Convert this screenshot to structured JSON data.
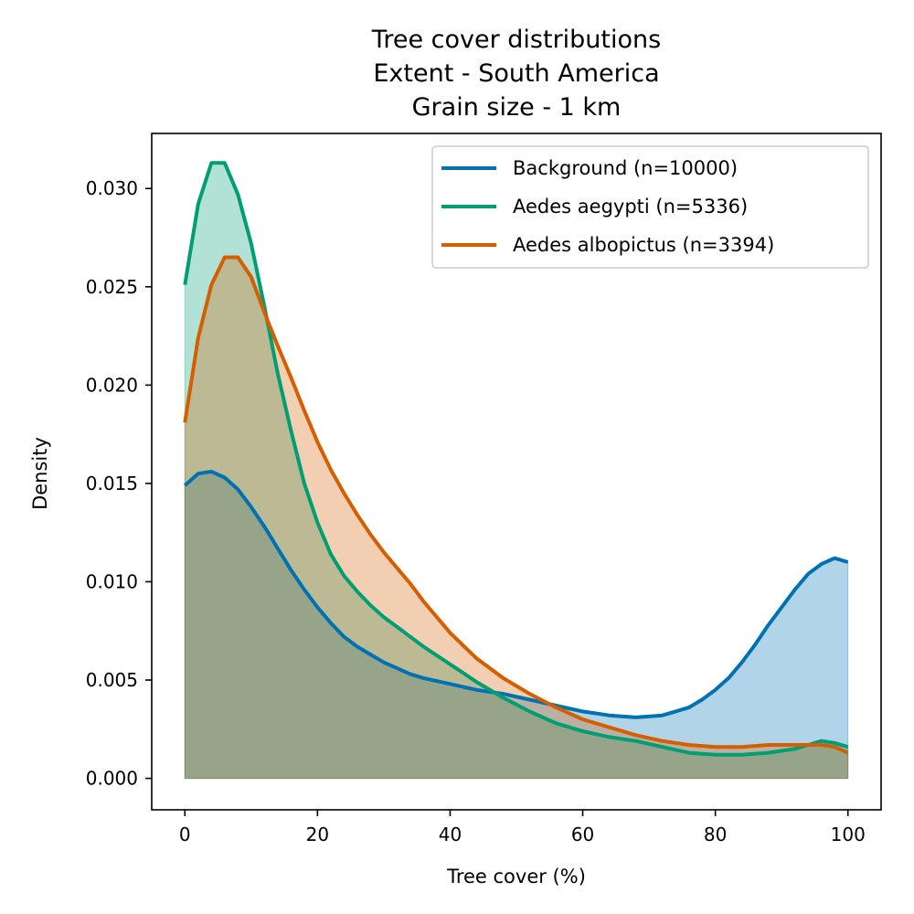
{
  "chart_data": {
    "type": "area",
    "title": [
      "Tree cover distributions",
      "Extent - South America",
      "Grain size - 1 km"
    ],
    "xlabel": "Tree cover (%)",
    "ylabel": "Density",
    "xlim": [
      -5,
      105
    ],
    "ylim": [
      -0.0016,
      0.0328
    ],
    "xticks": [
      0,
      20,
      40,
      60,
      80,
      100
    ],
    "yticks": [
      0.0,
      0.005,
      0.01,
      0.015,
      0.02,
      0.025,
      0.03
    ],
    "ytick_labels": [
      "0.000",
      "0.005",
      "0.010",
      "0.015",
      "0.020",
      "0.025",
      "0.030"
    ],
    "grid": false,
    "legend_position": "top-right",
    "series": [
      {
        "name": "Background (n=10000)",
        "color": "#0072b2",
        "points": [
          [
            0,
            0.0149
          ],
          [
            2,
            0.0155
          ],
          [
            4,
            0.0156
          ],
          [
            6,
            0.0153
          ],
          [
            8,
            0.0147
          ],
          [
            10,
            0.0138
          ],
          [
            12,
            0.0128
          ],
          [
            14,
            0.0117
          ],
          [
            16,
            0.0106
          ],
          [
            18,
            0.0096
          ],
          [
            20,
            0.0087
          ],
          [
            22,
            0.0079
          ],
          [
            24,
            0.0072
          ],
          [
            26,
            0.0067
          ],
          [
            28,
            0.0063
          ],
          [
            30,
            0.0059
          ],
          [
            32,
            0.0056
          ],
          [
            34,
            0.0053
          ],
          [
            36,
            0.0051
          ],
          [
            40,
            0.0048
          ],
          [
            44,
            0.0045
          ],
          [
            48,
            0.0043
          ],
          [
            52,
            0.004
          ],
          [
            56,
            0.0037
          ],
          [
            60,
            0.0034
          ],
          [
            64,
            0.0032
          ],
          [
            68,
            0.0031
          ],
          [
            72,
            0.0032
          ],
          [
            74,
            0.0034
          ],
          [
            76,
            0.0036
          ],
          [
            78,
            0.004
          ],
          [
            80,
            0.0045
          ],
          [
            82,
            0.0051
          ],
          [
            84,
            0.0059
          ],
          [
            86,
            0.0068
          ],
          [
            88,
            0.0078
          ],
          [
            90,
            0.0087
          ],
          [
            92,
            0.0096
          ],
          [
            94,
            0.0104
          ],
          [
            96,
            0.0109
          ],
          [
            98,
            0.0112
          ],
          [
            100,
            0.011
          ]
        ]
      },
      {
        "name": "Aedes aegypti (n=5336)",
        "color": "#009e73",
        "points": [
          [
            0,
            0.0251
          ],
          [
            2,
            0.0292
          ],
          [
            4,
            0.0313
          ],
          [
            6,
            0.0313
          ],
          [
            8,
            0.0297
          ],
          [
            10,
            0.0272
          ],
          [
            12,
            0.024
          ],
          [
            14,
            0.0206
          ],
          [
            16,
            0.0177
          ],
          [
            18,
            0.015
          ],
          [
            20,
            0.013
          ],
          [
            22,
            0.0114
          ],
          [
            24,
            0.0103
          ],
          [
            26,
            0.0095
          ],
          [
            28,
            0.0088
          ],
          [
            30,
            0.0082
          ],
          [
            32,
            0.0077
          ],
          [
            34,
            0.0072
          ],
          [
            36,
            0.0067
          ],
          [
            40,
            0.0058
          ],
          [
            44,
            0.0049
          ],
          [
            48,
            0.0041
          ],
          [
            52,
            0.0034
          ],
          [
            56,
            0.0028
          ],
          [
            60,
            0.0024
          ],
          [
            64,
            0.0021
          ],
          [
            68,
            0.0019
          ],
          [
            72,
            0.0016
          ],
          [
            76,
            0.0013
          ],
          [
            80,
            0.0012
          ],
          [
            84,
            0.0012
          ],
          [
            88,
            0.0013
          ],
          [
            92,
            0.0015
          ],
          [
            94,
            0.0017
          ],
          [
            96,
            0.0019
          ],
          [
            98,
            0.0018
          ],
          [
            100,
            0.0016
          ]
        ]
      },
      {
        "name": "Aedes albopictus (n=3394)",
        "color": "#d55e00",
        "points": [
          [
            0,
            0.0181
          ],
          [
            2,
            0.0224
          ],
          [
            4,
            0.0251
          ],
          [
            6,
            0.0265
          ],
          [
            8,
            0.0265
          ],
          [
            10,
            0.0255
          ],
          [
            12,
            0.0237
          ],
          [
            14,
            0.022
          ],
          [
            16,
            0.0204
          ],
          [
            18,
            0.0187
          ],
          [
            20,
            0.0171
          ],
          [
            22,
            0.0157
          ],
          [
            24,
            0.0145
          ],
          [
            26,
            0.0134
          ],
          [
            28,
            0.0124
          ],
          [
            30,
            0.0115
          ],
          [
            32,
            0.0107
          ],
          [
            34,
            0.0099
          ],
          [
            36,
            0.009
          ],
          [
            40,
            0.0074
          ],
          [
            44,
            0.0061
          ],
          [
            48,
            0.0051
          ],
          [
            52,
            0.0043
          ],
          [
            56,
            0.0036
          ],
          [
            60,
            0.003
          ],
          [
            64,
            0.0026
          ],
          [
            68,
            0.0022
          ],
          [
            72,
            0.0019
          ],
          [
            76,
            0.0017
          ],
          [
            80,
            0.0016
          ],
          [
            84,
            0.0016
          ],
          [
            88,
            0.0017
          ],
          [
            92,
            0.0017
          ],
          [
            96,
            0.0017
          ],
          [
            98,
            0.0016
          ],
          [
            100,
            0.0013
          ]
        ]
      }
    ]
  }
}
